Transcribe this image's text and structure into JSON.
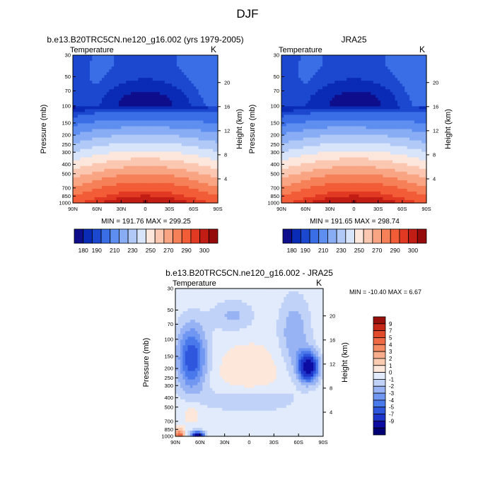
{
  "figure": {
    "title": "DJF"
  },
  "colors": {
    "abs_levels": [
      "#0e0e8c",
      "#0a2bb5",
      "#1c48cf",
      "#3a6ee6",
      "#5e8ff0",
      "#88adf5",
      "#b1c9f7",
      "#d7e4fa",
      "#fde6dc",
      "#fbc7b0",
      "#f9a584",
      "#f68158",
      "#f25c37",
      "#e23a22",
      "#c21d14",
      "#950b0b"
    ],
    "diff_levels": [
      "#000074",
      "#0c0ca3",
      "#1e36c9",
      "#2e57de",
      "#4a79ec",
      "#7097f1",
      "#98b3f4",
      "#c0d2f8",
      "#e1ebfb",
      "#fde7da",
      "#fbcbb1",
      "#f8ae8c",
      "#f58b63",
      "#ef6945",
      "#e24a2c",
      "#c52818",
      "#97100c"
    ]
  },
  "chart_data": [
    {
      "type": "heatmap",
      "title": "b.e13.B20TRC5CN.ne120_g16.002 (yrs 1979-2005)",
      "left_label": "Temperature",
      "right_label": "K",
      "ylabel": "Pressure (mb)",
      "ylabel_right": "Height (km)",
      "x_ticks": [
        "90N",
        "60N",
        "30N",
        "0",
        "30S",
        "60S",
        "90S"
      ],
      "y_ticks": [
        1000,
        850,
        700,
        500,
        400,
        300,
        250,
        200,
        150,
        100,
        70,
        50,
        30
      ],
      "y_right_ticks": [
        4,
        8,
        12,
        16,
        20
      ],
      "x_range": [
        90,
        -90
      ],
      "y_range": [
        1000,
        30
      ],
      "min_max_text": "MIN = 191.76  MAX = 299.25",
      "colorbar_labels": [
        "180",
        "190",
        "210",
        "230",
        "250",
        "270",
        "290",
        "300"
      ],
      "contour_levels": [
        180,
        185,
        190,
        200,
        210,
        220,
        230,
        240,
        250,
        260,
        270,
        280,
        290,
        295,
        300
      ]
    },
    {
      "type": "heatmap",
      "title": "JRA25",
      "left_label": "Temperature",
      "right_label": "K",
      "ylabel": "Pressure (mb)",
      "ylabel_right": "Height (km)",
      "x_ticks": [
        "90N",
        "60N",
        "30N",
        "0",
        "30S",
        "60S",
        "90S"
      ],
      "y_ticks": [
        1000,
        850,
        700,
        500,
        400,
        300,
        250,
        200,
        150,
        100,
        70,
        50,
        30
      ],
      "y_right_ticks": [
        4,
        8,
        12,
        16,
        20
      ],
      "x_range": [
        90,
        -90
      ],
      "y_range": [
        1000,
        30
      ],
      "min_max_text": "MIN = 191.65  MAX = 298.74",
      "colorbar_labels": [
        "180",
        "190",
        "210",
        "230",
        "250",
        "270",
        "290",
        "300"
      ],
      "contour_levels": [
        180,
        185,
        190,
        200,
        210,
        220,
        230,
        240,
        250,
        260,
        270,
        280,
        290,
        295,
        300
      ]
    },
    {
      "type": "heatmap",
      "title": "b.e13.B20TRC5CN.ne120_g16.002 - JRA25",
      "left_label": "Temperature",
      "right_label": "K",
      "ylabel": "Pressure (mb)",
      "ylabel_right": "Height (km)",
      "x_ticks": [
        "90N",
        "60N",
        "30N",
        "0",
        "30S",
        "60S",
        "90S"
      ],
      "y_ticks": [
        1000,
        850,
        700,
        500,
        400,
        300,
        250,
        200,
        150,
        100,
        70,
        50,
        30
      ],
      "y_right_ticks": [
        4,
        8,
        12,
        16,
        20
      ],
      "x_range": [
        90,
        -90
      ],
      "y_range": [
        1000,
        30
      ],
      "min_max_text": "MIN = -10.40  MAX =   6.67",
      "colorbar_labels": [
        "9",
        "7",
        "5",
        "4",
        "3",
        "2",
        "1",
        "0",
        "-1",
        "-2",
        "-3",
        "-4",
        "-5",
        "-7",
        "-9"
      ],
      "contour_levels": [
        -9,
        -7,
        -5,
        -4,
        -3,
        -2,
        -1,
        0,
        1,
        2,
        3,
        4,
        5,
        7,
        9
      ]
    }
  ]
}
